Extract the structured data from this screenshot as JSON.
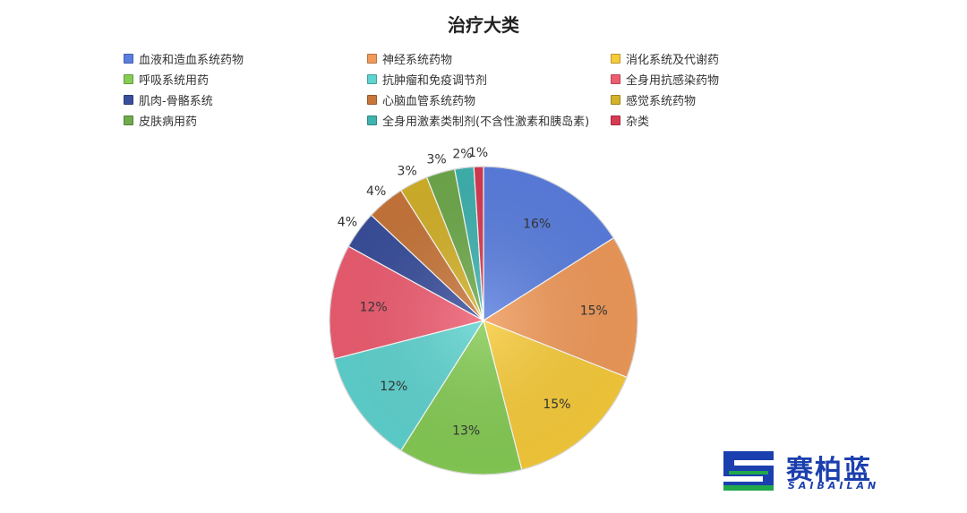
{
  "chart_data": {
    "type": "pie",
    "title": "治疗大类",
    "legend_position": "top",
    "categories": [
      "血液和造血系统药物",
      "神经系统药物",
      "消化系统及代谢药",
      "呼吸系统用药",
      "抗肿瘤和免疫调节剂",
      "全身用抗感染药物",
      "肌肉-骨骼系统",
      "心脑血管系统药物",
      "感觉系统药物",
      "皮肤病用药",
      "全身用激素类制剂(不含性激素和胰岛素)",
      "杂类"
    ],
    "values": [
      16,
      15,
      15,
      13,
      12,
      12,
      4,
      4,
      3,
      3,
      2,
      1
    ],
    "labels": [
      "16%",
      "15%",
      "15%",
      "13%",
      "12%",
      "12%",
      "4%",
      "4%",
      "3%",
      "3%",
      "2%",
      "1%"
    ],
    "colors": [
      "#5b7fe0",
      "#f09a5a",
      "#f7cb3a",
      "#86cc55",
      "#5fd3cf",
      "#ee5d71",
      "#3a4f9c",
      "#c8763a",
      "#d4b22a",
      "#6faa4c",
      "#3fb3b0",
      "#d83a52"
    ]
  },
  "logo": {
    "text": "赛柏蓝",
    "subtext": "SAIBAILAN"
  }
}
